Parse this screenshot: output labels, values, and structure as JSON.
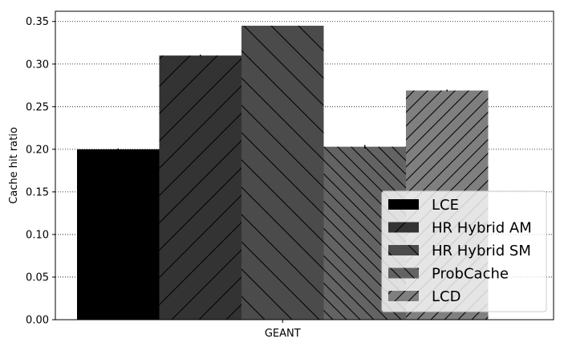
{
  "chart_data": {
    "type": "bar",
    "categories": [
      "GEANT"
    ],
    "ylabel": "Cache hit ratio",
    "xlabel": "",
    "ylim": [
      0,
      0.362
    ],
    "yticks": [
      "0.00",
      "0.05",
      "0.10",
      "0.15",
      "0.20",
      "0.25",
      "0.30",
      "0.35"
    ],
    "grid": "horizontal dotted",
    "legend_position": "lower-right",
    "series": [
      {
        "name": "LCE",
        "values": [
          0.2
        ],
        "color": "#000000",
        "hatch": "none",
        "error": 0.001
      },
      {
        "name": "HR Hybrid AM",
        "values": [
          0.31
        ],
        "color": "#333333",
        "hatch": "forward",
        "error": 0.001
      },
      {
        "name": "HR Hybrid SM",
        "values": [
          0.345
        ],
        "color": "#4b4b4b",
        "hatch": "back",
        "error": 0.0
      },
      {
        "name": "ProbCache",
        "values": [
          0.203
        ],
        "color": "#636363",
        "hatch": "back-dense",
        "error": 0.002
      },
      {
        "name": "LCD",
        "values": [
          0.269
        ],
        "color": "#7f7f7f",
        "hatch": "forward-dense",
        "error": 0.001
      }
    ]
  }
}
